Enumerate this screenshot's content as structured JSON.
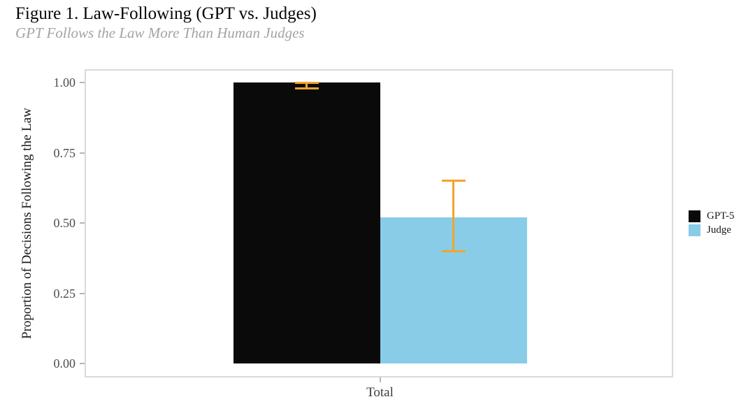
{
  "chart_data": {
    "type": "bar",
    "title": "Figure 1. Law-Following (GPT vs. Judges)",
    "subtitle": "GPT Follows the Law More Than Human Judges",
    "ylabel": "Proportion of Decisions Following the Law",
    "xlabel": "",
    "categories": [
      "Total"
    ],
    "series": [
      {
        "name": "GPT-5",
        "color": "#0a0a0a",
        "values": [
          1.0
        ],
        "error_low": [
          0.98
        ],
        "error_high": [
          1.0
        ]
      },
      {
        "name": "Judge",
        "color": "#89cce8",
        "values": [
          0.52
        ],
        "error_low": [
          0.4
        ],
        "error_high": [
          0.65
        ]
      }
    ],
    "error_bar_color": "#f1a42d",
    "ylim": [
      0,
      1
    ],
    "yticks": [
      1.0,
      0.75,
      0.5,
      0.25,
      0.0
    ],
    "ytick_labels": [
      "1.00",
      "0.75",
      "0.50",
      "0.25",
      "0.00"
    ],
    "grid": false,
    "legend_position": "right",
    "legend_items": [
      {
        "label": "GPT-5",
        "swatch_color": "#0a0a0a"
      },
      {
        "label": "Judge",
        "swatch_color": "#89cce8"
      }
    ]
  }
}
